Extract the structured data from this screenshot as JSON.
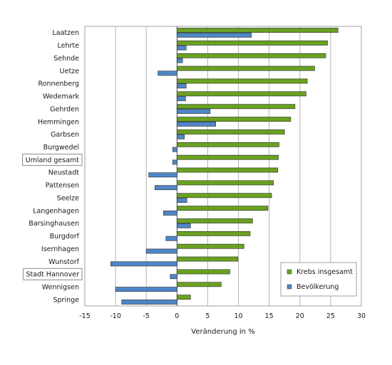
{
  "chart_data": {
    "type": "bar",
    "orientation": "horizontal",
    "categories": [
      "Laatzen",
      "Lehrte",
      "Sehnde",
      "Uetze",
      "Ronnenberg",
      "Wedemark",
      "Gehrden",
      "Hemmingen",
      "Garbsen",
      "Burgwedel",
      "Umland gesamt",
      "Neustadt",
      "Pattensen",
      "Seelze",
      "Langenhagen",
      "Barsinghausen",
      "Burgdorf",
      "Isernhagen",
      "Wunstorf",
      "Stadt Hannover",
      "Wennigsen",
      "Springe"
    ],
    "boxed_categories": [
      "Umland gesamt",
      "Stadt Hannover"
    ],
    "series": [
      {
        "name": "Krebs insgesamt",
        "color": "#6aa121",
        "values": [
          26.2,
          24.5,
          24.2,
          22.4,
          21.2,
          21.0,
          19.2,
          18.5,
          17.5,
          16.6,
          16.5,
          16.4,
          15.7,
          15.4,
          14.8,
          12.3,
          11.9,
          10.9,
          9.9,
          8.6,
          7.2,
          2.2
        ]
      },
      {
        "name": "Bevölkerung",
        "color": "#4f86c6",
        "values": [
          12.1,
          1.5,
          0.9,
          -3.1,
          1.5,
          1.4,
          5.4,
          6.3,
          1.2,
          -0.7,
          -0.7,
          -4.6,
          -3.6,
          1.6,
          -2.2,
          2.2,
          -1.8,
          -5.0,
          -10.8,
          -1.1,
          -10.0,
          -9.0
        ]
      }
    ],
    "xlabel": "Veränderung in %",
    "xlim": [
      -15,
      30
    ],
    "xticks": [
      -15,
      -10,
      -5,
      0,
      5,
      10,
      15,
      20,
      25,
      30
    ],
    "grid": true,
    "legend_position": "lower-right"
  }
}
